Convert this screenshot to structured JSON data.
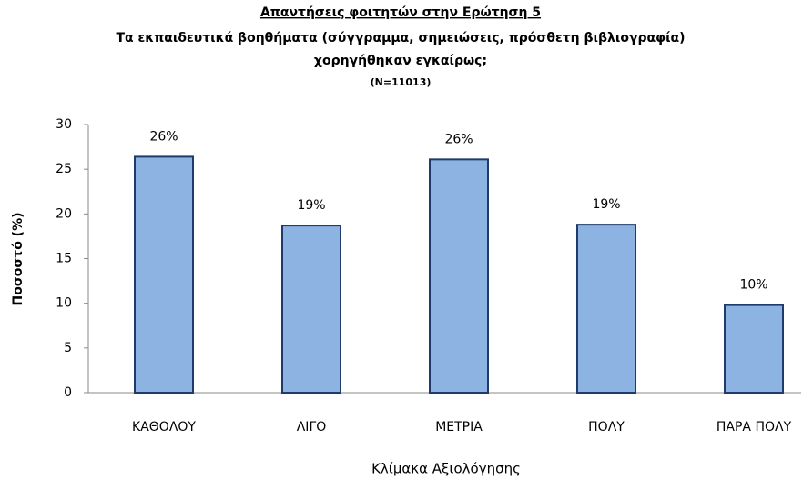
{
  "chart_data": {
    "type": "bar",
    "title": "Απαντήσεις φοιτητών στην Ερώτηση 5",
    "subtitle": [
      "Τα εκπαιδευτικά βοηθήματα (σύγγραμμα, σημειώσεις,  πρόσθετη βιβλιογραφία)",
      "χορηγήθηκαν εγκαίρως;",
      "(N=11013)"
    ],
    "x_label": "Κλίμακα Αξιολόγησης",
    "y_label": "Ποσοστό (%)",
    "categories": [
      "ΚΑΘΟΛΟΥ",
      "ΛΙΓΟ",
      "ΜΕΤΡΙΑ",
      "ΠΟΛΥ",
      "ΠΑΡΑ ΠΟΛΥ"
    ],
    "values": [
      26.4,
      18.7,
      26.1,
      18.8,
      9.8
    ],
    "value_labels": [
      "26%",
      "19%",
      "26%",
      "19%",
      "10%"
    ],
    "color": "#8db3e2",
    "ylim": [
      0,
      30
    ],
    "yticks": [
      0,
      5,
      10,
      15,
      20,
      25,
      30
    ],
    "grid": false
  }
}
